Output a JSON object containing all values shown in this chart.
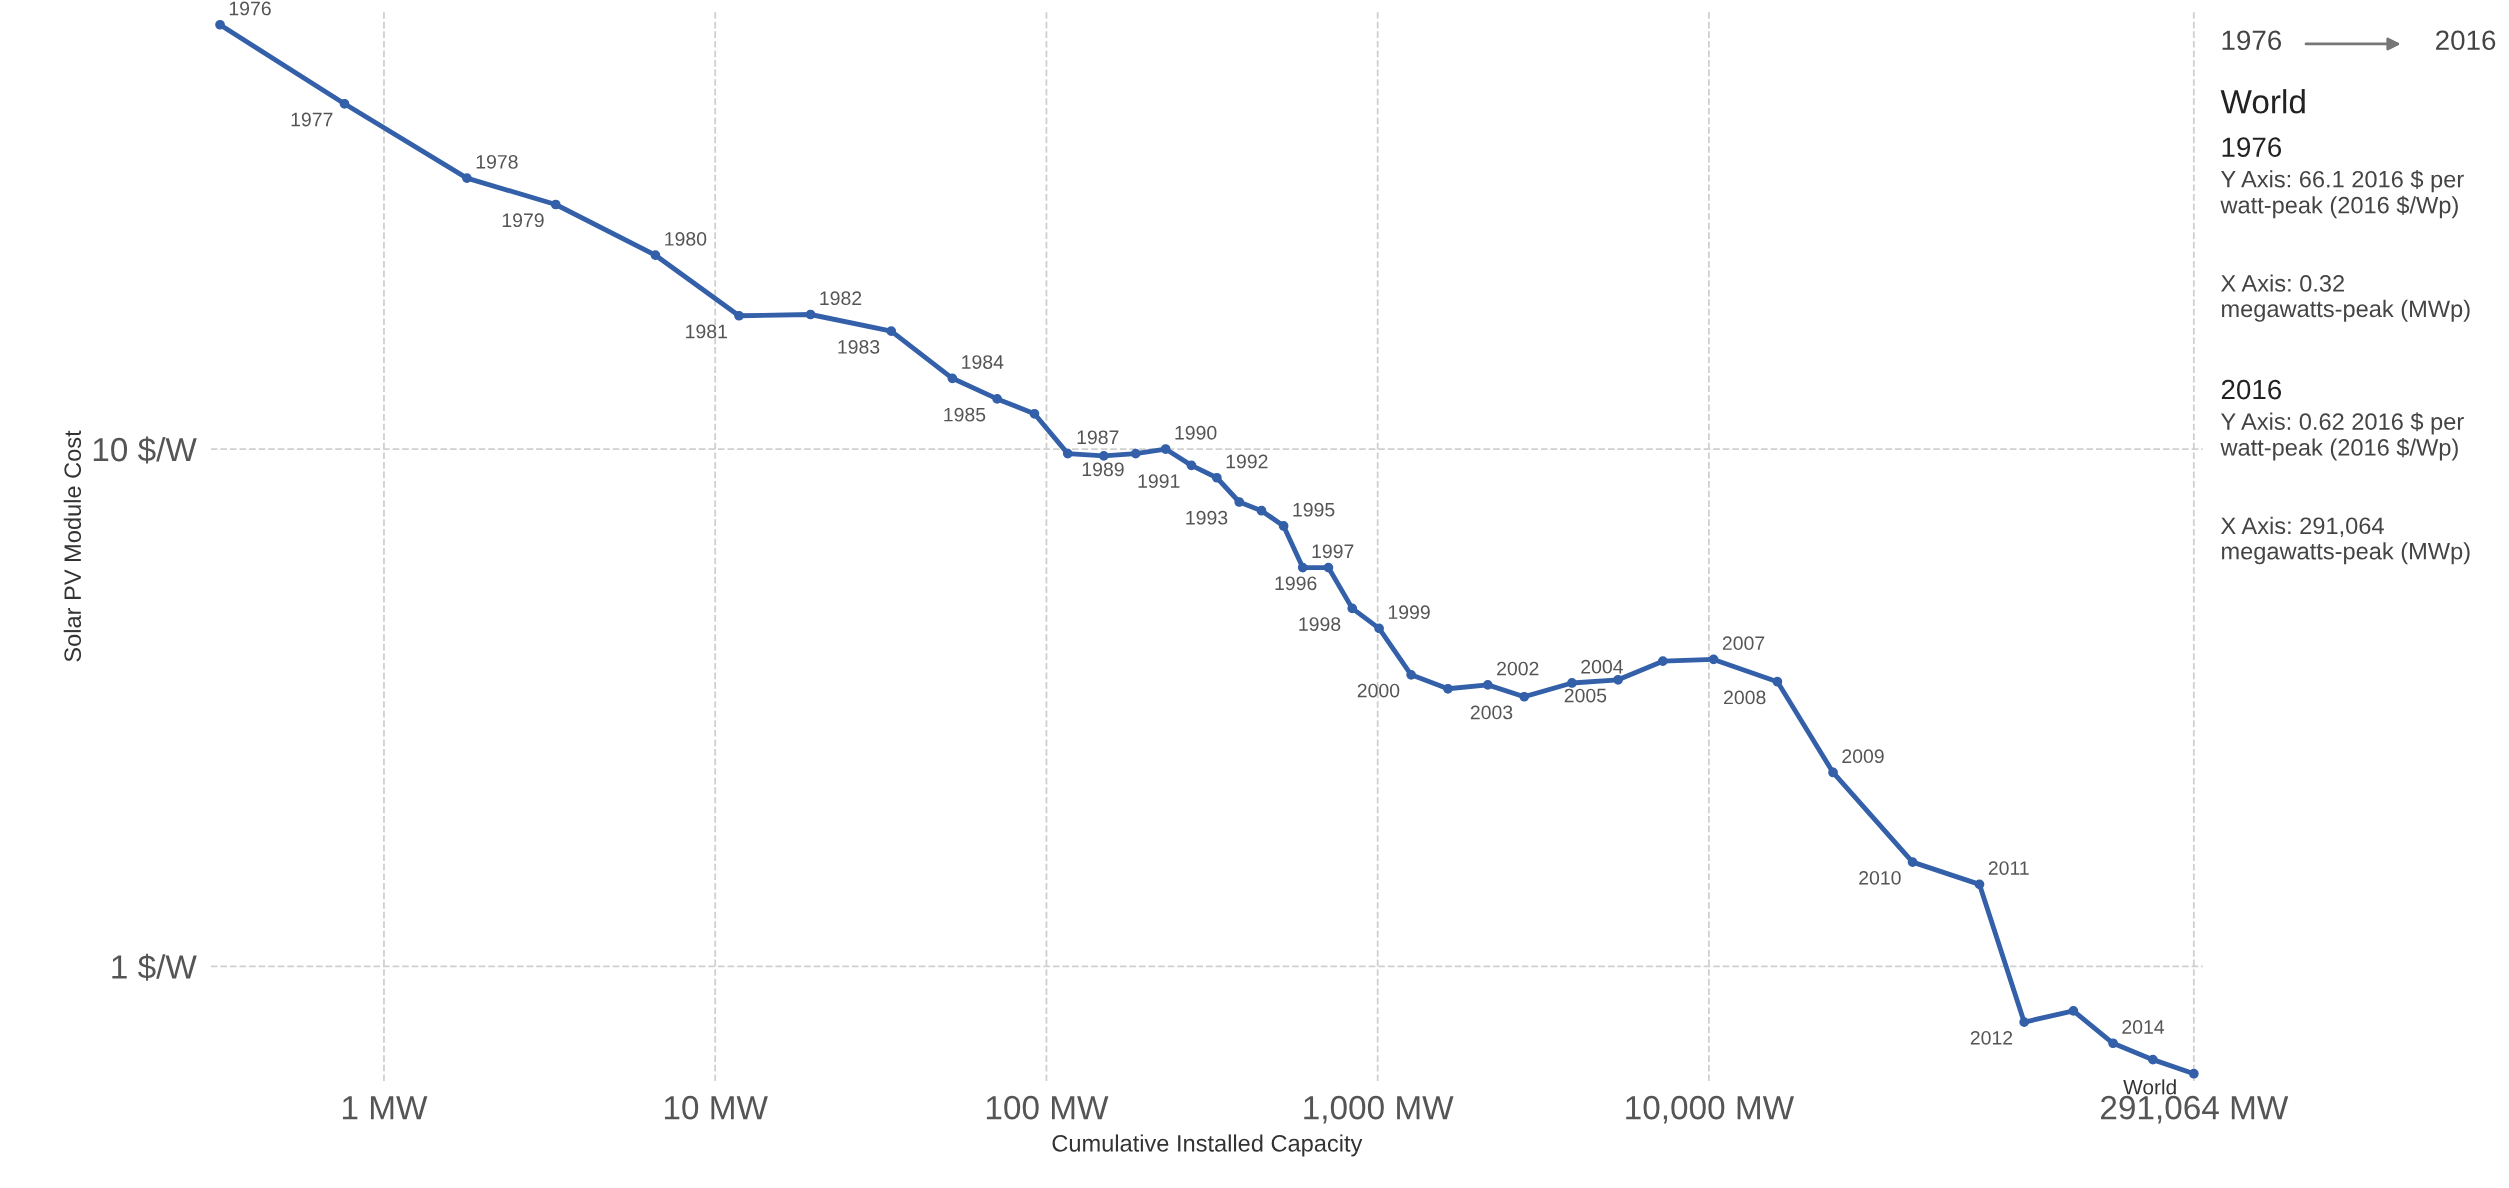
{
  "chart_data": {
    "type": "line",
    "xlabel": "Cumulative Installed Capacity",
    "ylabel": "Solar PV Module Cost",
    "log": "xy",
    "grid": true,
    "marker": "circle",
    "line_style": "solid",
    "xlim": [
      0.3,
      310000
    ],
    "ylim": [
      0.6,
      70
    ],
    "xticks": [
      {
        "value": 1,
        "label": "1 MW"
      },
      {
        "value": 10,
        "label": "10 MW"
      },
      {
        "value": 100,
        "label": "100 MW"
      },
      {
        "value": 1000,
        "label": "1,000 MW"
      },
      {
        "value": 10000,
        "label": "10,000 MW"
      },
      {
        "value": 291064,
        "label": "291,064 MW"
      }
    ],
    "yticks": [
      {
        "value": 1,
        "label": "1 $/W"
      },
      {
        "value": 10,
        "label": "10 $/W"
      }
    ],
    "series": [
      {
        "name": "World",
        "color": "#3360a9",
        "x": [
          0.32,
          0.76,
          1.78,
          3.3,
          6.6,
          11.8,
          19.4,
          34,
          52,
          71,
          92,
          116,
          149,
          186,
          229,
          274,
          327,
          382,
          446,
          520,
          594,
          710,
          838,
          1010,
          1262,
          1630,
          2150,
          2770,
          3860,
          5320,
          7260,
          10330,
          16100,
          23700,
          41200,
          65600,
          89500,
          126000,
          166000,
          219000,
          291064
        ],
        "values": [
          66.1,
          46.5,
          33.4,
          29.7,
          23.7,
          18.1,
          18.2,
          16.9,
          13.7,
          12.5,
          11.7,
          9.8,
          9.7,
          9.8,
          10.0,
          9.3,
          8.8,
          7.9,
          7.6,
          7.1,
          5.9,
          5.9,
          4.92,
          4.5,
          3.66,
          3.44,
          3.5,
          3.32,
          3.53,
          3.58,
          3.89,
          3.92,
          3.55,
          2.37,
          1.59,
          1.44,
          0.78,
          0.82,
          0.71,
          0.66,
          0.62
        ]
      }
    ],
    "annotations": [
      "1976",
      "2016",
      "World",
      "1976",
      "Y Axis: 66.1 2016 $ per watt-peak (2016 $/Wp)",
      "X Axis: 0.32 megawatts-peak (MWp)",
      "2016",
      "Y Axis: 0.62 2016 $ per watt-peak (2016 $/Wp)",
      "X Axis: 291,064 megawatts-peak (MWp)",
      {
        "text": "1976",
        "x": 0.32,
        "y": 66.1
      },
      {
        "text": "1977",
        "x": 0.76,
        "y": 46.5
      },
      {
        "text": "1978",
        "x": 1.78,
        "y": 33.4
      },
      {
        "text": "1979",
        "x": 3.3,
        "y": 29.7
      },
      {
        "text": "1980",
        "x": 6.6,
        "y": 23.7
      },
      {
        "text": "1981",
        "x": 11.8,
        "y": 18.1
      },
      {
        "text": "1982",
        "x": 19.4,
        "y": 18.2
      },
      {
        "text": "1983",
        "x": 34,
        "y": 16.9
      },
      {
        "text": "1984",
        "x": 52,
        "y": 13.7
      },
      {
        "text": "1985",
        "x": 71,
        "y": 12.5
      },
      {
        "text": "1987",
        "x": 116,
        "y": 9.8
      },
      {
        "text": "1989",
        "x": 186,
        "y": 9.8
      },
      {
        "text": "1990",
        "x": 229,
        "y": 10.0
      },
      {
        "text": "1991",
        "x": 274,
        "y": 9.3
      },
      {
        "text": "1992",
        "x": 327,
        "y": 8.8
      },
      {
        "text": "1993",
        "x": 382,
        "y": 7.9
      },
      {
        "text": "1995",
        "x": 520,
        "y": 7.1
      },
      {
        "text": "1996",
        "x": 710,
        "y": 5.9
      },
      {
        "text": "1997",
        "x": 594,
        "y": 5.9
      },
      {
        "text": "1998",
        "x": 838,
        "y": 4.92
      },
      {
        "text": "1999",
        "x": 1010,
        "y": 4.5
      },
      {
        "text": "2000",
        "x": 1262,
        "y": 3.66
      },
      {
        "text": "2002",
        "x": 2150,
        "y": 3.5
      },
      {
        "text": "2003",
        "x": 2770,
        "y": 3.32
      },
      {
        "text": "2004",
        "x": 3860,
        "y": 3.53
      },
      {
        "text": "2005",
        "x": 5320,
        "y": 3.58
      },
      {
        "text": "2007",
        "x": 10330,
        "y": 3.92
      },
      {
        "text": "2008",
        "x": 16100,
        "y": 3.55
      },
      {
        "text": "2009",
        "x": 23700,
        "y": 2.37
      },
      {
        "text": "2010",
        "x": 41200,
        "y": 1.59
      },
      {
        "text": "2011",
        "x": 65600,
        "y": 1.44
      },
      {
        "text": "2012",
        "x": 89500,
        "y": 0.78
      },
      {
        "text": "2014",
        "x": 166000,
        "y": 0.71
      }
    ]
  }
}
